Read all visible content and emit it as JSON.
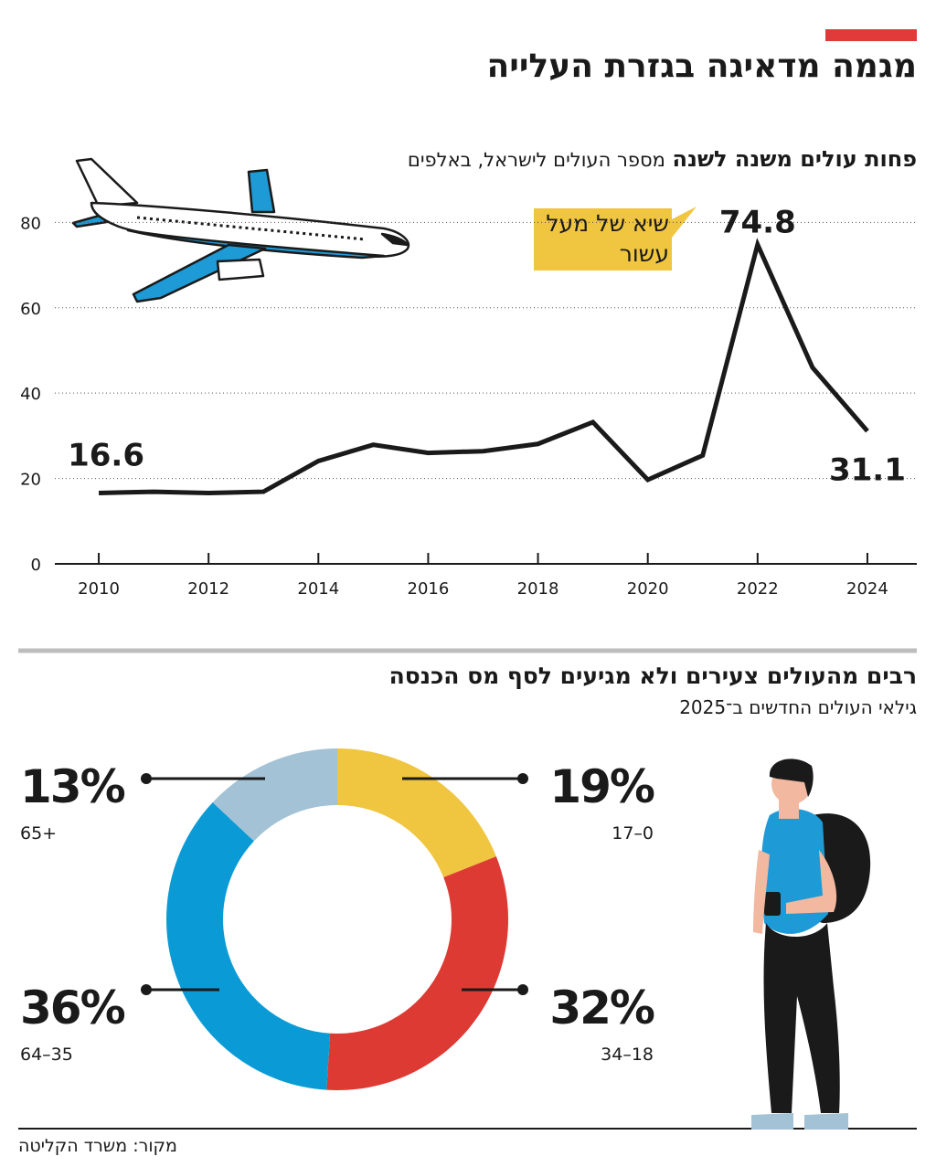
{
  "header": {
    "title": "מגמה מדאיגה בגזרת העלייה"
  },
  "chart_data": [
    {
      "type": "line",
      "title": "פחות עולים משנה לשנה",
      "subtitle": "מספר העולים לישראל, באלפים",
      "annotation": "שיא של מעל עשור",
      "x": [
        2010,
        2011,
        2012,
        2013,
        2014,
        2015,
        2016,
        2017,
        2018,
        2019,
        2020,
        2021,
        2022,
        2023,
        2024
      ],
      "values": [
        16.6,
        16.9,
        16.6,
        16.9,
        24.1,
        27.9,
        26.0,
        26.4,
        28.1,
        33.2,
        19.7,
        25.4,
        74.8,
        46,
        31.1
      ],
      "color": "#1a1a1a",
      "xlim": [
        2009.2,
        2024.9
      ],
      "xticks": [
        2010,
        2012,
        2014,
        2016,
        2018,
        2020,
        2022,
        2024
      ],
      "ylim": [
        0,
        85
      ],
      "yticks": [
        0,
        20,
        40,
        60,
        80
      ],
      "grid": true
    },
    {
      "type": "donut",
      "title": "רבים מהעולים צעירים ולא מגיעים לסף מס הכנסה",
      "subtitle": "גילאי העולים החדשים ב־2025",
      "categories": [
        "17–0",
        "34–18",
        "64–35",
        "65+"
      ],
      "values": [
        19,
        32,
        36,
        13
      ],
      "value_labels": [
        "19%",
        "32%",
        "36%",
        "13%"
      ],
      "colors": [
        "#f0c53f",
        "#dd3a33",
        "#0a9bd6",
        "#a3c2d6"
      ]
    }
  ],
  "source": "מקור: משרד הקליטה"
}
